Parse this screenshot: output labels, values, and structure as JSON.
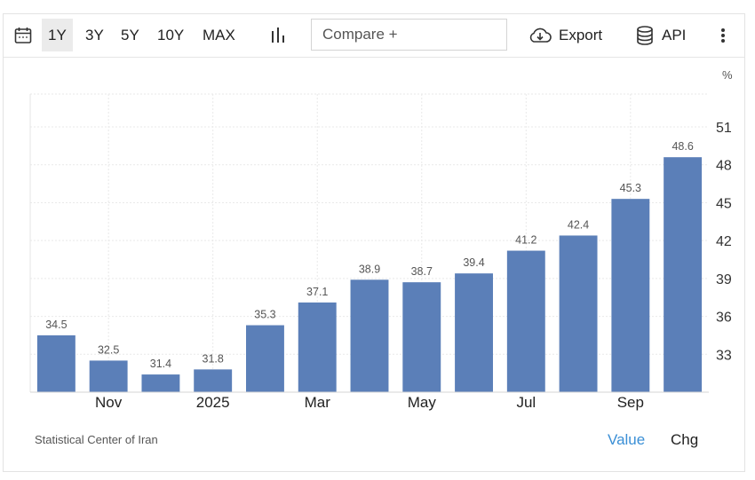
{
  "toolbar": {
    "ranges": [
      "1Y",
      "3Y",
      "5Y",
      "10Y",
      "MAX"
    ],
    "active_range": "1Y",
    "compare_placeholder": "Compare +",
    "export_label": "Export",
    "api_label": "API",
    "icons": {
      "calendar": "calendar-icon",
      "chart_type": "bar-chart-icon",
      "export": "cloud-download-icon",
      "api": "database-icon",
      "menu": "more-vertical-icon"
    }
  },
  "chart_data": {
    "type": "bar",
    "unit": "%",
    "values": [
      34.5,
      32.5,
      31.4,
      31.8,
      35.3,
      37.1,
      38.9,
      38.7,
      39.4,
      41.2,
      42.4,
      45.3,
      48.6
    ],
    "x_tick_labels": [
      {
        "label": "Nov",
        "index": 1
      },
      {
        "label": "2025",
        "index": 3
      },
      {
        "label": "Mar",
        "index": 5
      },
      {
        "label": "May",
        "index": 7
      },
      {
        "label": "Jul",
        "index": 9
      },
      {
        "label": "Sep",
        "index": 11
      }
    ],
    "y_ticks": [
      33,
      36,
      39,
      42,
      45,
      48,
      51
    ],
    "ylim": [
      30.0,
      53.6
    ],
    "y_axis_position": "right",
    "bar_color": "#5b7fb8",
    "grid": true,
    "data_labels": true
  },
  "footer": {
    "source": "Statistical Center of Iran",
    "value_tab": "Value",
    "chg_tab": "Chg",
    "active_color": "#3a8fd6"
  }
}
